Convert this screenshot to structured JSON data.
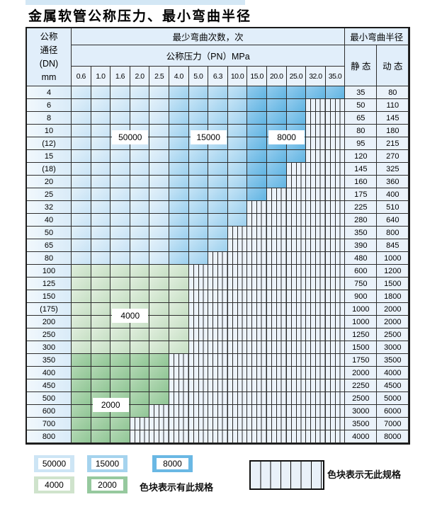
{
  "title": "金属软管公称压力、最小弯曲半径",
  "table": {
    "header": {
      "dn_label_lines": [
        "公称",
        "通径",
        "(DN)",
        "mm"
      ],
      "bend_cycles_label": "最少弯曲次数，次",
      "pressure_label": "公称压力（PN）MPa",
      "pressure_columns": [
        "0.6",
        "1.0",
        "1.6",
        "2.0",
        "2.5",
        "4.0",
        "5.0",
        "6.3",
        "10.0",
        "15.0",
        "20.0",
        "25.0",
        "32.0",
        "35.0"
      ],
      "radius_label": "最小弯曲半径",
      "static_label": "静 态",
      "dynamic_label": "动 态"
    },
    "rows": [
      {
        "dn": "4",
        "static": "35",
        "dynamic": "80",
        "spans": [
          [
            5,
            "b1"
          ],
          [
            4,
            "b2"
          ],
          [
            5,
            "b3"
          ]
        ]
      },
      {
        "dn": "6",
        "static": "50",
        "dynamic": "110",
        "spans": [
          [
            5,
            "b1"
          ],
          [
            4,
            "b2"
          ],
          [
            3,
            "b3"
          ],
          [
            2,
            "x"
          ]
        ]
      },
      {
        "dn": "8",
        "static": "65",
        "dynamic": "145",
        "spans": [
          [
            5,
            "b1"
          ],
          [
            4,
            "b2"
          ],
          [
            3,
            "b3"
          ],
          [
            2,
            "x"
          ]
        ]
      },
      {
        "dn": "10",
        "static": "80",
        "dynamic": "180",
        "spans": [
          [
            5,
            "b1"
          ],
          [
            4,
            "b2"
          ],
          [
            3,
            "b3"
          ],
          [
            2,
            "x"
          ]
        ]
      },
      {
        "dn": "(12)",
        "static": "95",
        "dynamic": "215",
        "spans": [
          [
            5,
            "b1"
          ],
          [
            4,
            "b2"
          ],
          [
            3,
            "b3"
          ],
          [
            2,
            "x"
          ]
        ]
      },
      {
        "dn": "15",
        "static": "120",
        "dynamic": "270",
        "spans": [
          [
            5,
            "b1"
          ],
          [
            4,
            "b2"
          ],
          [
            3,
            "b3"
          ],
          [
            2,
            "x"
          ]
        ]
      },
      {
        "dn": "(18)",
        "static": "145",
        "dynamic": "325",
        "spans": [
          [
            5,
            "b1"
          ],
          [
            4,
            "b2"
          ],
          [
            2,
            "b3"
          ],
          [
            3,
            "x"
          ]
        ]
      },
      {
        "dn": "20",
        "static": "160",
        "dynamic": "360",
        "spans": [
          [
            5,
            "b1"
          ],
          [
            4,
            "b2"
          ],
          [
            2,
            "b3"
          ],
          [
            3,
            "x"
          ]
        ]
      },
      {
        "dn": "25",
        "static": "175",
        "dynamic": "400",
        "spans": [
          [
            5,
            "b1"
          ],
          [
            4,
            "b2"
          ],
          [
            1,
            "b3"
          ],
          [
            4,
            "x"
          ]
        ]
      },
      {
        "dn": "32",
        "static": "225",
        "dynamic": "510",
        "spans": [
          [
            5,
            "b1"
          ],
          [
            4,
            "b2"
          ],
          [
            5,
            "x"
          ]
        ]
      },
      {
        "dn": "40",
        "static": "280",
        "dynamic": "640",
        "spans": [
          [
            5,
            "b1"
          ],
          [
            4,
            "b2"
          ],
          [
            5,
            "x"
          ]
        ]
      },
      {
        "dn": "50",
        "static": "350",
        "dynamic": "800",
        "spans": [
          [
            5,
            "b1"
          ],
          [
            3,
            "b2"
          ],
          [
            6,
            "x"
          ]
        ]
      },
      {
        "dn": "65",
        "static": "390",
        "dynamic": "845",
        "spans": [
          [
            5,
            "b1"
          ],
          [
            3,
            "b2"
          ],
          [
            6,
            "x"
          ]
        ]
      },
      {
        "dn": "80",
        "static": "480",
        "dynamic": "1000",
        "spans": [
          [
            5,
            "b1"
          ],
          [
            2,
            "b2"
          ],
          [
            7,
            "x"
          ]
        ]
      },
      {
        "dn": "100",
        "static": "600",
        "dynamic": "1200",
        "spans": [
          [
            6,
            "g1"
          ],
          [
            8,
            "x"
          ]
        ]
      },
      {
        "dn": "125",
        "static": "750",
        "dynamic": "1500",
        "spans": [
          [
            6,
            "g1"
          ],
          [
            8,
            "x"
          ]
        ]
      },
      {
        "dn": "150",
        "static": "900",
        "dynamic": "1800",
        "spans": [
          [
            6,
            "g1"
          ],
          [
            8,
            "x"
          ]
        ]
      },
      {
        "dn": "(175)",
        "static": "1000",
        "dynamic": "2000",
        "spans": [
          [
            6,
            "g1"
          ],
          [
            8,
            "x"
          ]
        ]
      },
      {
        "dn": "200",
        "static": "1000",
        "dynamic": "2000",
        "spans": [
          [
            6,
            "g1"
          ],
          [
            8,
            "x"
          ]
        ]
      },
      {
        "dn": "250",
        "static": "1250",
        "dynamic": "2500",
        "spans": [
          [
            6,
            "g1"
          ],
          [
            8,
            "x"
          ]
        ]
      },
      {
        "dn": "300",
        "static": "1500",
        "dynamic": "3000",
        "spans": [
          [
            6,
            "g1"
          ],
          [
            8,
            "x"
          ]
        ]
      },
      {
        "dn": "350",
        "static": "1750",
        "dynamic": "3500",
        "spans": [
          [
            5,
            "g2"
          ],
          [
            9,
            "x"
          ]
        ]
      },
      {
        "dn": "400",
        "static": "2000",
        "dynamic": "4000",
        "spans": [
          [
            5,
            "g2"
          ],
          [
            9,
            "x"
          ]
        ]
      },
      {
        "dn": "450",
        "static": "2250",
        "dynamic": "4500",
        "spans": [
          [
            5,
            "g2"
          ],
          [
            9,
            "x"
          ]
        ]
      },
      {
        "dn": "500",
        "static": "2500",
        "dynamic": "5000",
        "spans": [
          [
            5,
            "g2"
          ],
          [
            9,
            "x"
          ]
        ]
      },
      {
        "dn": "600",
        "static": "3000",
        "dynamic": "6000",
        "spans": [
          [
            4,
            "g2"
          ],
          [
            10,
            "x"
          ]
        ]
      },
      {
        "dn": "700",
        "static": "3500",
        "dynamic": "7000",
        "spans": [
          [
            3,
            "g2"
          ],
          [
            11,
            "x"
          ]
        ]
      },
      {
        "dn": "800",
        "static": "4000",
        "dynamic": "8000",
        "spans": [
          [
            3,
            "g2"
          ],
          [
            11,
            "x"
          ]
        ]
      }
    ],
    "overlay_labels": [
      {
        "text": "50000",
        "col_start": 2,
        "col_span": 2,
        "row_boundary": 4
      },
      {
        "text": "15000",
        "col_start": 6,
        "col_span": 2,
        "row_boundary": 4
      },
      {
        "text": "8000",
        "col_start": 10,
        "col_span": 2,
        "row_boundary": 4
      },
      {
        "text": "4000",
        "col_start": 2,
        "col_span": 2,
        "row_boundary": 18
      },
      {
        "text": "2000",
        "col_start": 1,
        "col_span": 2,
        "row_boundary": 25
      }
    ]
  },
  "legend": {
    "swatches": [
      {
        "value": "50000",
        "cls": "b1"
      },
      {
        "value": "15000",
        "cls": "b2"
      },
      {
        "value": "8000",
        "cls": "b3"
      },
      {
        "value": "4000",
        "cls": "g1"
      },
      {
        "value": "2000",
        "cls": "g2"
      }
    ],
    "has_spec_label": "色块表示有此规格",
    "no_spec_label": "色块表示无此规格"
  },
  "colors": {
    "cycles_50000": "#cde5f5",
    "cycles_15000": "#a5d3ee",
    "cycles_8000": "#6ab8e4",
    "cycles_4000": "#cfe3cc",
    "cycles_2000": "#96c99e",
    "hatch_bg": "#ecf3fa",
    "grid_line": "#2d2d2d",
    "header_bg": "#e1eefa"
  }
}
